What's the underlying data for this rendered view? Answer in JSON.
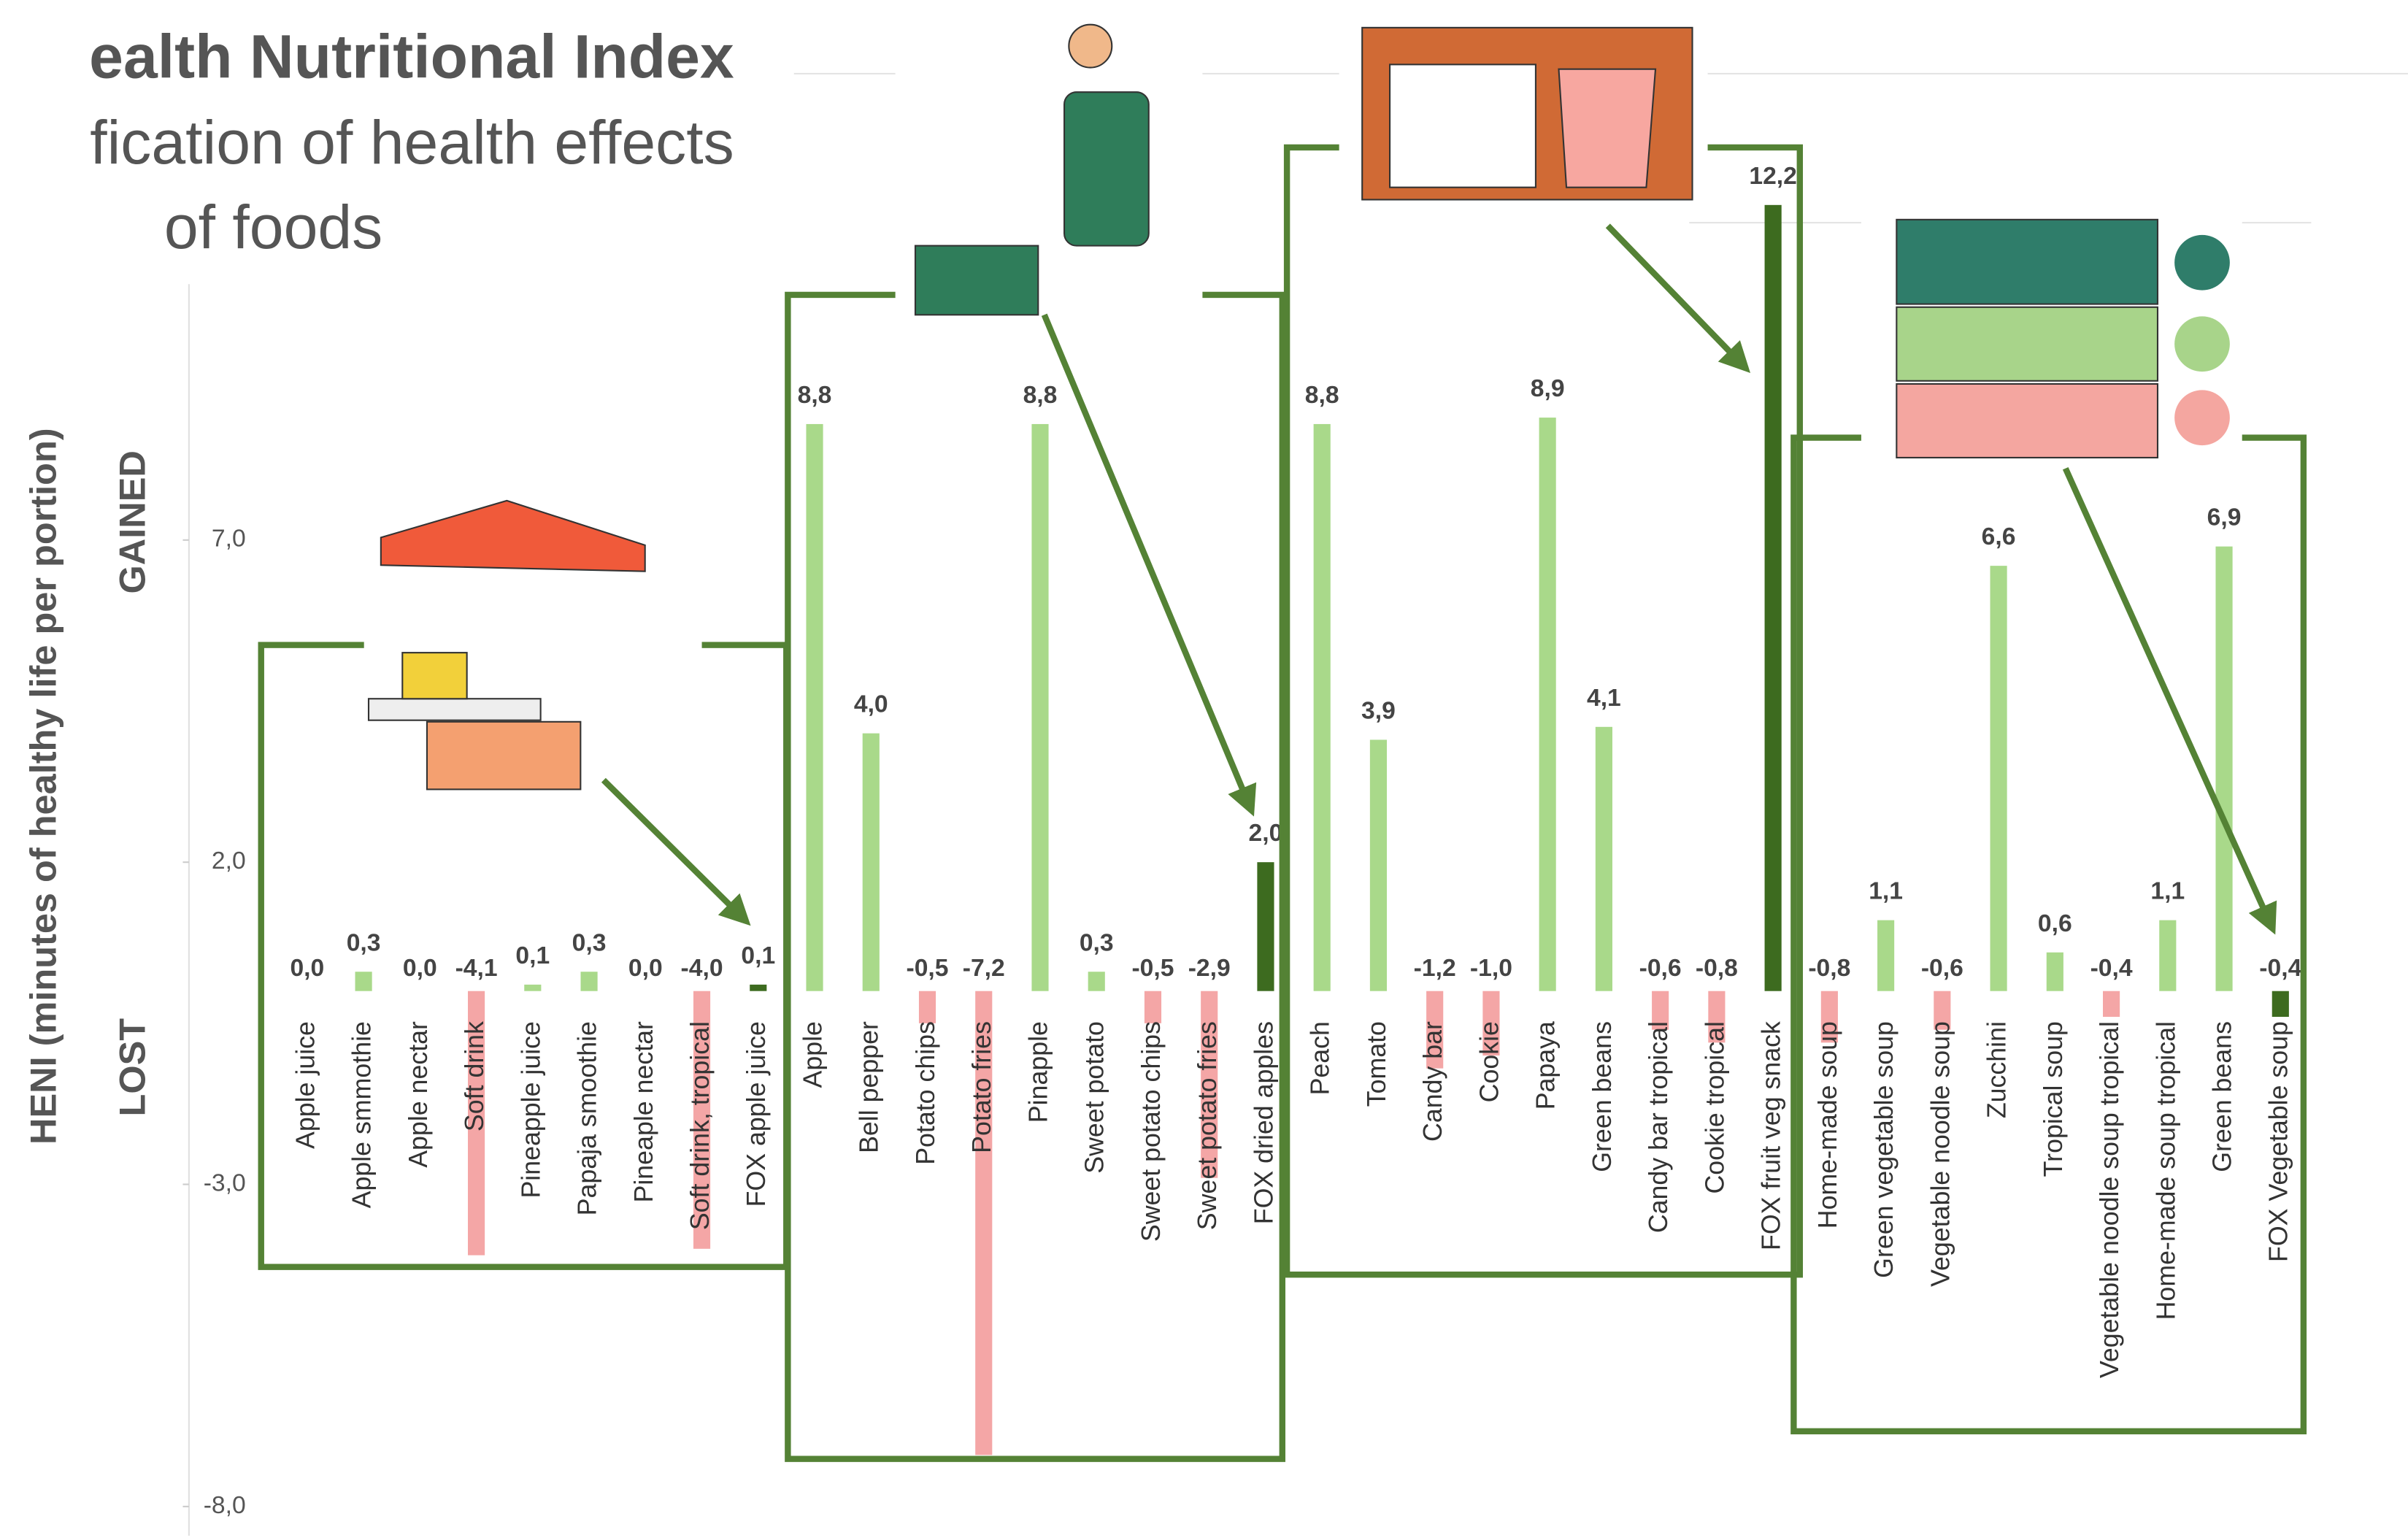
{
  "chart_data": {
    "type": "bar",
    "title_lines": [
      "ealth Nutritional Index",
      "fication of health effects",
      "of foods"
    ],
    "y_label": "HENI (minutes of healthy life per portion)",
    "gained_label": "GAINED",
    "lost_label": "LOST",
    "categories": [
      "Apple juice",
      "Apple smmothie",
      "Apple nectar",
      "Soft drink",
      "Pineapple juice",
      "Papaja smoothie",
      "Pineaple nectar",
      "Soft drink, tropical",
      "FOX apple juice",
      "Apple",
      "Bell pepper",
      "Potato chips",
      "Potato fries",
      "Pinapple",
      "Sweet potato",
      "Sweet potato chips",
      "Sweet potato fries",
      "FOX dried apples",
      "Peach",
      "Tomato",
      "Candy bar",
      "Cookie",
      "Papaya",
      "Green beans",
      "Candy bar tropical",
      "Cookie tropical",
      "FOX fruit veg snack",
      "Home-made soup",
      "Green vegetable soup",
      "Vegetable noodle soup",
      "Zucchini",
      "Tropical soup",
      "Vegetable noodle soup tropical",
      "Home-made soup tropical",
      "Green beans",
      "FOX Vegetable soup"
    ],
    "values": [
      0.0,
      0.3,
      0.0,
      -4.1,
      0.1,
      0.3,
      0.0,
      -4.0,
      0.1,
      8.8,
      4.0,
      -0.5,
      -7.2,
      8.8,
      0.3,
      -0.5,
      -2.9,
      2.0,
      8.8,
      3.9,
      -1.2,
      -1.0,
      8.9,
      4.1,
      -0.6,
      -0.8,
      12.2,
      -0.8,
      1.1,
      -0.6,
      6.6,
      0.6,
      -0.4,
      1.1,
      6.9,
      -0.4
    ],
    "value_labels": [
      "0,0",
      "0,3",
      "0,0",
      "-4,1",
      "0,1",
      "0,3",
      "0,0",
      "-4,0",
      "0,1",
      "8,8",
      "4,0",
      "-0,5",
      "-7,2",
      "8,8",
      "0,3",
      "-0,5",
      "-2,9",
      "2,0",
      "8,8",
      "3,9",
      "-1,2",
      "-1,0",
      "8,9",
      "4,1",
      "-0,6",
      "-0,8",
      "12,2",
      "-0,8",
      "1,1",
      "-0,6",
      "6,6",
      "0,6",
      "-0,4",
      "1,1",
      "6,9",
      "-0,4"
    ],
    "colors": [
      "#a9d98a",
      "#a9d98a",
      "#a9d98a",
      "#f4a6a6",
      "#a9d98a",
      "#a9d98a",
      "#a9d98a",
      "#f4a6a6",
      "#3d6b1f",
      "#a9d98a",
      "#a9d98a",
      "#f4a6a6",
      "#f4a6a6",
      "#a9d98a",
      "#a9d98a",
      "#f4a6a6",
      "#f4a6a6",
      "#3d6b1f",
      "#a9d98a",
      "#a9d98a",
      "#f4a6a6",
      "#f4a6a6",
      "#a9d98a",
      "#a9d98a",
      "#f4a6a6",
      "#f4a6a6",
      "#3d6b1f",
      "#f4a6a6",
      "#a9d98a",
      "#f4a6a6",
      "#a9d98a",
      "#a9d98a",
      "#f4a6a6",
      "#a9d98a",
      "#a9d98a",
      "#3d6b1f"
    ],
    "ylim": [
      -8,
      15
    ],
    "yticks": [
      {
        "value": 7,
        "label": "7,0"
      },
      {
        "value": 2,
        "label": "2,0"
      },
      {
        "value": -3,
        "label": "-3,0"
      },
      {
        "value": -8,
        "label": "-8,0"
      }
    ],
    "grid": false
  }
}
